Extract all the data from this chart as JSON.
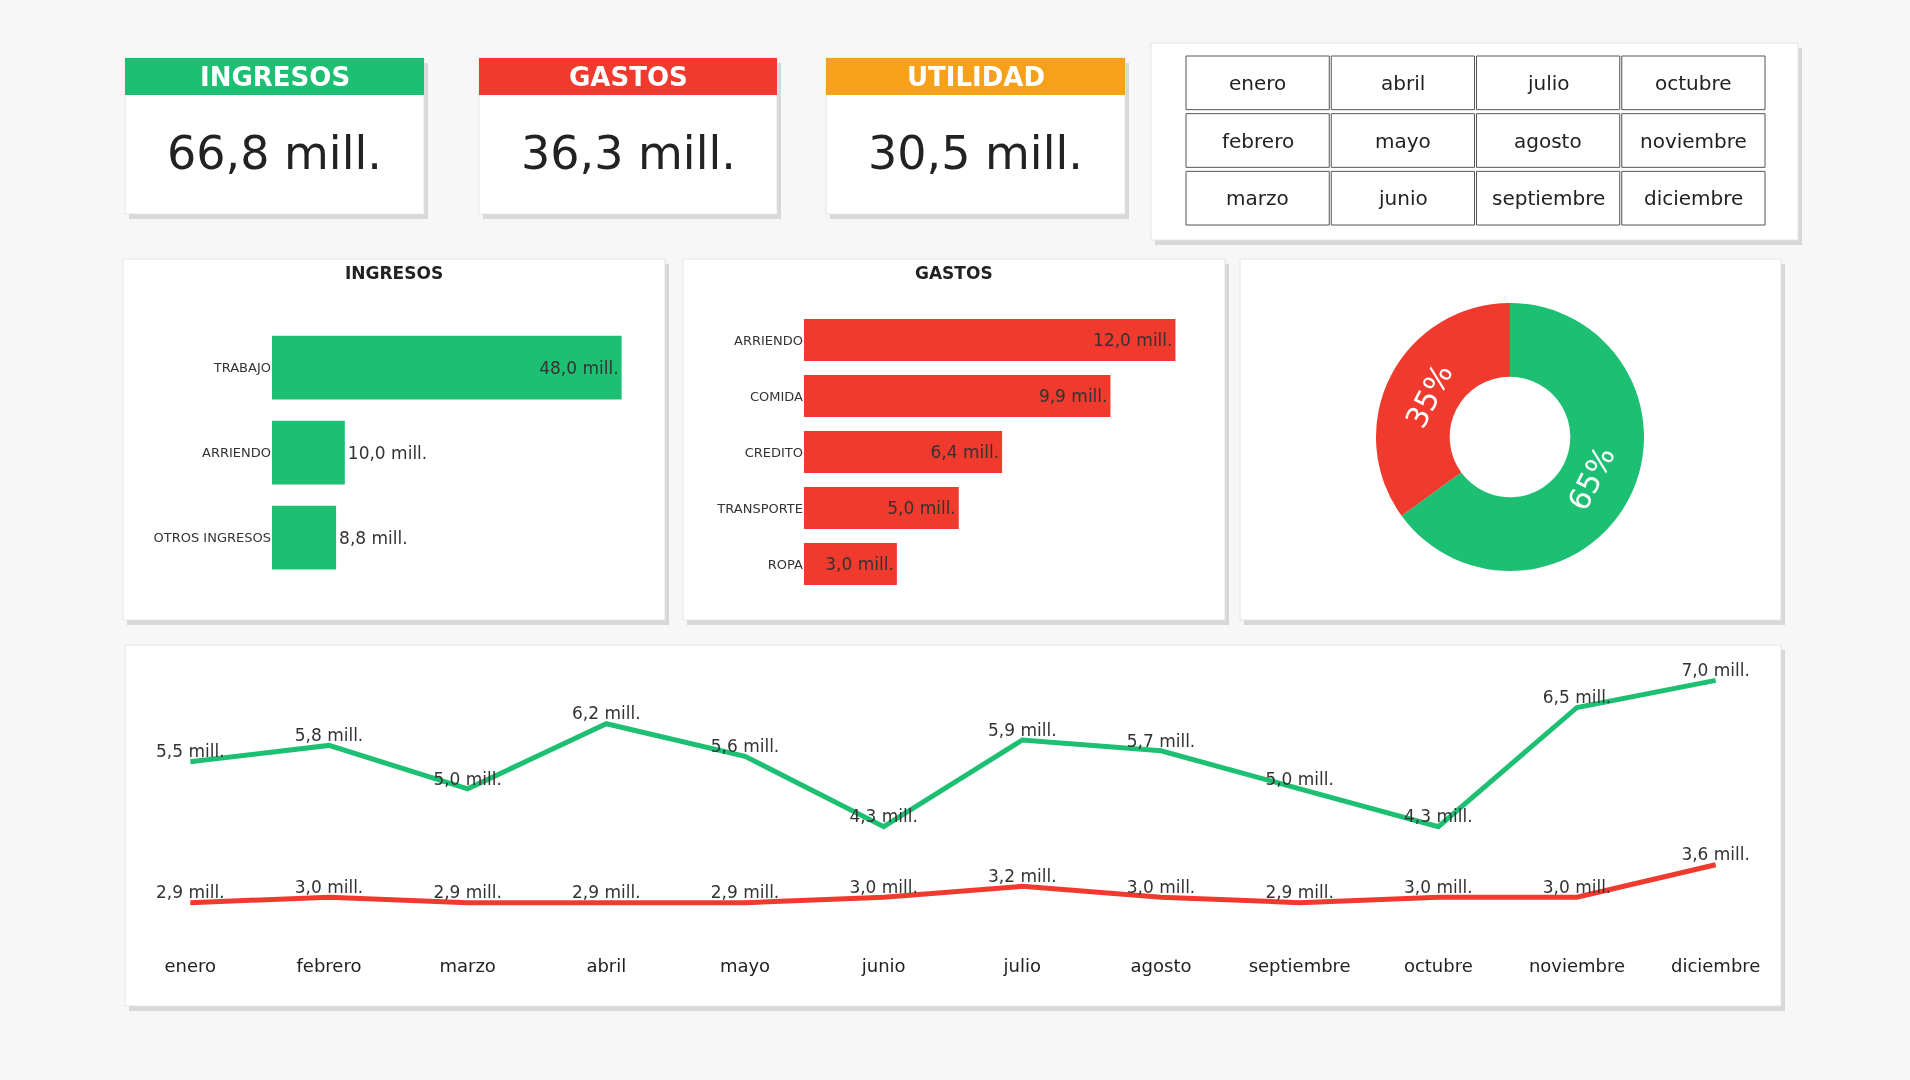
{
  "chart_data": [
    {
      "type": "other",
      "title": "INGRESOS",
      "annotations": [
        "66,8 mill."
      ],
      "colors": [
        "#1dbf73"
      ]
    },
    {
      "type": "other",
      "title": "GASTOS",
      "annotations": [
        "36,3 mill."
      ],
      "colors": [
        "#ef3a2d"
      ]
    },
    {
      "type": "other",
      "title": "UTILIDAD",
      "annotations": [
        "30,5 mill."
      ],
      "colors": [
        "#f7a11a"
      ]
    },
    {
      "type": "other",
      "annotations": [
        "enero",
        "abril",
        "julio",
        "octubre",
        "febrero",
        "mayo",
        "agosto",
        "noviembre",
        "marzo",
        "junio",
        "septiembre",
        "diciembre"
      ]
    },
    {
      "type": "bar",
      "orientation": "horizontal",
      "title": "INGRESOS",
      "categories": [
        "TRABAJO",
        "ARRIENDO",
        "OTROS INGRESOS"
      ],
      "values": [
        48.0,
        10.0,
        8.8
      ],
      "value_labels": [
        "48,0 mill.",
        "10,0 mill.",
        "8,8 mill."
      ],
      "colors": [
        "#1dbf73",
        "#1dbf73",
        "#1dbf73"
      ]
    },
    {
      "type": "bar",
      "orientation": "horizontal",
      "title": "GASTOS",
      "categories": [
        "ARRIENDO",
        "COMIDA",
        "CREDITO",
        "TRANSPORTE",
        "ROPA"
      ],
      "values": [
        12.0,
        9.9,
        6.4,
        5.0,
        3.0
      ],
      "value_labels": [
        "12,0 mill.",
        "9,9 mill.",
        "6,4 mill.",
        "5,0 mill.",
        "3,0 mill."
      ],
      "colors": [
        "#ef3a2d",
        "#ef3a2d",
        "#ef3a2d",
        "#ef3a2d",
        "#ef3a2d"
      ]
    },
    {
      "type": "donut",
      "categories": [
        null,
        null
      ],
      "values": [
        65,
        35
      ],
      "value_labels": [
        "65%",
        "35%"
      ],
      "colors": [
        "#1dbf73",
        "#ef3a2d"
      ]
    },
    {
      "type": "line",
      "categories": [
        "enero",
        "febrero",
        "marzo",
        "abril",
        "mayo",
        "junio",
        "julio",
        "agosto",
        "septiembre",
        "octubre",
        "noviembre",
        "diciembre"
      ],
      "series": [
        {
          "color": "#1dbf73",
          "values": [
            5.5,
            5.8,
            5.0,
            6.2,
            5.6,
            4.3,
            5.9,
            5.7,
            5.0,
            4.3,
            6.5,
            7.0
          ],
          "value_labels": [
            "5,5 mill.",
            "5,8 mill.",
            "5,0 mill.",
            "6,2 mill.",
            "5,6 mill.",
            "4,3 mill.",
            "5,9 mill.",
            "5,7 mill.",
            "5,0 mill.",
            "4,3 mill.",
            "6,5 mill.",
            "7,0 mill."
          ]
        },
        {
          "color": "#ef3a2d",
          "values": [
            2.9,
            3.0,
            2.9,
            2.9,
            2.9,
            3.0,
            3.2,
            3.0,
            2.9,
            3.0,
            3.0,
            3.6
          ],
          "value_labels": [
            "2,9 mill.",
            "3,0 mill.",
            "2,9 mill.",
            "2,9 mill.",
            "2,9 mill.",
            "3,0 mill.",
            "3,2 mill.",
            "3,0 mill.",
            "2,9 mill.",
            "3,0 mill.",
            "3,0 mill.",
            "3,6 mill."
          ]
        }
      ]
    }
  ]
}
